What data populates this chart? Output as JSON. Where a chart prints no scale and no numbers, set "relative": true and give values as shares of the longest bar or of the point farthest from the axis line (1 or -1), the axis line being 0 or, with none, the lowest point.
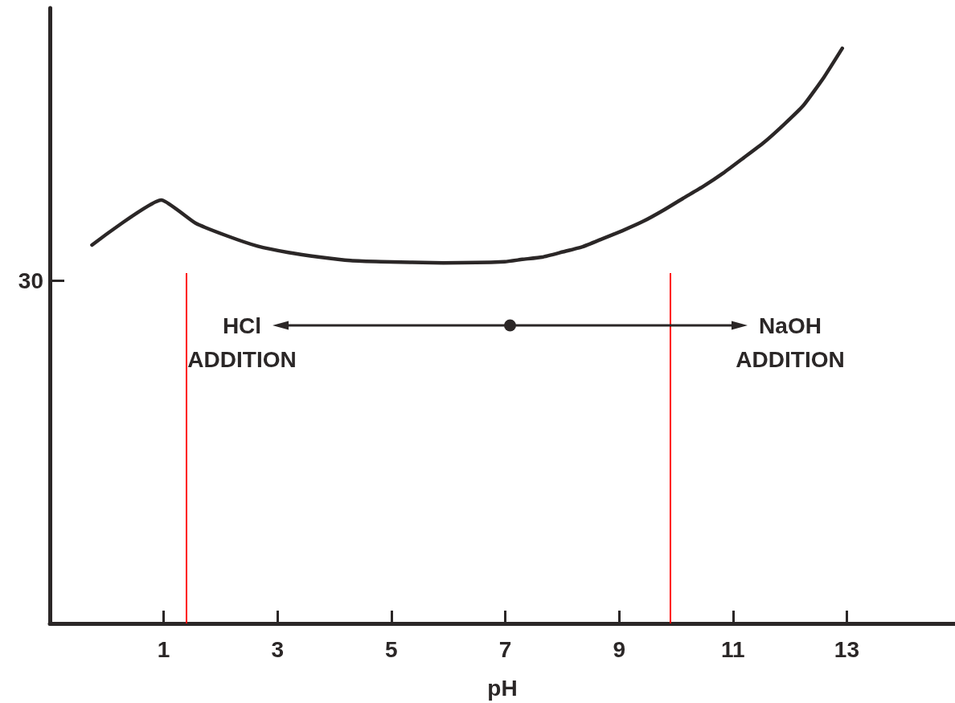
{
  "chart_data": {
    "type": "line",
    "relative": true,
    "xlabel": "pH",
    "xlim": [
      -1,
      14.9
    ],
    "xticks": [
      1,
      3,
      5,
      7,
      9,
      11,
      13
    ],
    "x": [
      -0.26,
      0.96,
      1.56,
      2.11,
      2.65,
      3.19,
      3.74,
      4.28,
      4.82,
      5.91,
      6.99,
      7.3,
      7.65,
      8.01,
      8.36,
      8.71,
      9.06,
      9.42,
      9.77,
      10.12,
      10.48,
      10.83,
      11.18,
      11.54,
      11.89,
      12.24,
      12.6,
      12.92
    ],
    "series": [
      {
        "color": "#2b2727",
        "values": [
          0.658,
          0.736,
          0.696,
          0.674,
          0.656,
          0.645,
          0.637,
          0.631,
          0.629,
          0.627,
          0.629,
          0.633,
          0.637,
          0.646,
          0.655,
          0.669,
          0.683,
          0.699,
          0.718,
          0.739,
          0.76,
          0.783,
          0.809,
          0.836,
          0.867,
          0.901,
          0.95,
          1.0
        ]
      }
    ],
    "ref_lines": [
      {
        "axis": "x",
        "value": 1.4,
        "color": "#ff0000"
      },
      {
        "axis": "x",
        "value": 9.9,
        "color": "#ff0000"
      }
    ],
    "annotations": [
      "HCl\nADDITION",
      "NaOH\nADDITION",
      "30"
    ]
  }
}
